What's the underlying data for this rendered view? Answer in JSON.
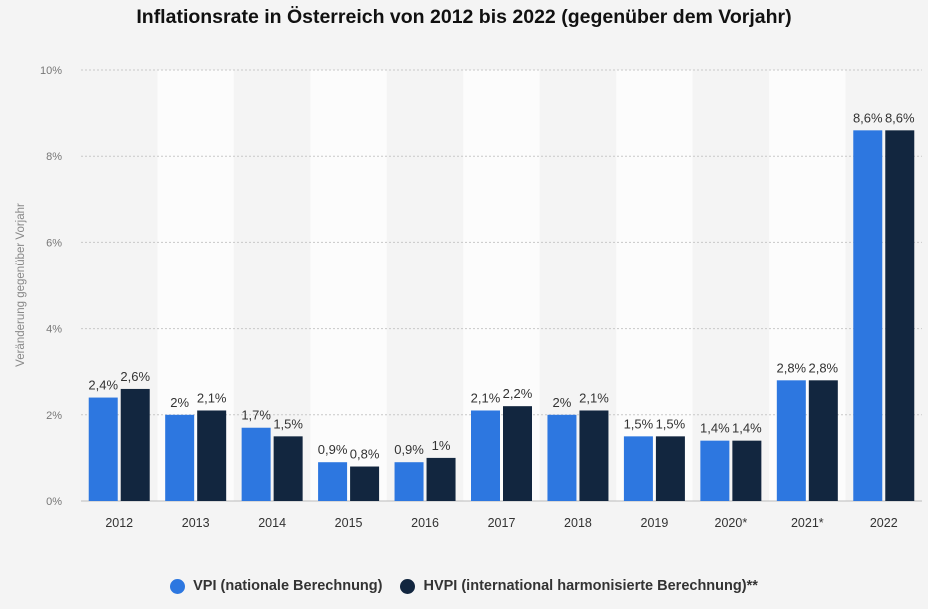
{
  "title": "Inflationsrate in Österreich von 2012 bis 2022 (gegenüber dem Vorjahr)",
  "chart_data": {
    "type": "bar",
    "title": "Inflationsrate in Österreich von 2012 bis 2022 (gegenüber dem Vorjahr)",
    "xlabel": "",
    "ylabel": "Veränderung gegenüber Vorjahr",
    "ylim": [
      0,
      10
    ],
    "yticks": [
      0,
      2,
      4,
      6,
      8,
      10
    ],
    "ytick_labels": [
      "0%",
      "2%",
      "4%",
      "6%",
      "8%",
      "10%"
    ],
    "grid": true,
    "legend_position": "bottom",
    "categories": [
      "2012",
      "2013",
      "2014",
      "2015",
      "2016",
      "2017",
      "2018",
      "2019",
      "2020*",
      "2021*",
      "2022"
    ],
    "series": [
      {
        "name": "VPI (nationale Berechnung)",
        "color": "#2d77e0",
        "values": [
          2.4,
          2.0,
          1.7,
          0.9,
          0.9,
          2.1,
          2.0,
          1.5,
          1.4,
          2.8,
          8.6
        ],
        "labels": [
          "2,4%",
          "2%",
          "1,7%",
          "0,9%",
          "0,9%",
          "2,1%",
          "2%",
          "1,5%",
          "1,4%",
          "2,8%",
          "8,6%"
        ]
      },
      {
        "name": "HVPI (international harmonisierte Berechnung)**",
        "color": "#12263f",
        "values": [
          2.6,
          2.1,
          1.5,
          0.8,
          1.0,
          2.2,
          2.1,
          1.5,
          1.4,
          2.8,
          8.6
        ],
        "labels": [
          "2,6%",
          "2,1%",
          "1,5%",
          "0,8%",
          "1%",
          "2,2%",
          "2,1%",
          "1,5%",
          "1,4%",
          "2,8%",
          "8,6%"
        ]
      }
    ]
  }
}
